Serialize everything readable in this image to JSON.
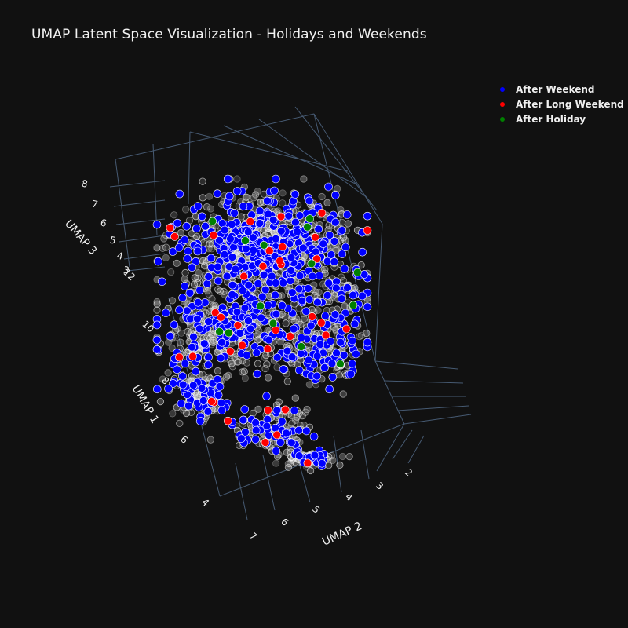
{
  "chart_data": {
    "type": "scatter",
    "title": "UMAP Latent Space Visualization - Holidays and Weekends",
    "axes": {
      "x": {
        "label": "UMAP 1",
        "ticks": [
          "4",
          "6",
          "8",
          "10",
          "12"
        ]
      },
      "y": {
        "label": "UMAP 2",
        "ticks": [
          "2",
          "3",
          "4",
          "5",
          "6",
          "7"
        ]
      },
      "z": {
        "label": "UMAP 3",
        "ticks": [
          "3",
          "4",
          "5",
          "6",
          "7",
          "8"
        ]
      }
    },
    "background_series": {
      "name": "",
      "color": "#cccccc"
    },
    "series": [
      {
        "name": "After Weekend",
        "color": "#0000ff"
      },
      {
        "name": "After Long Weekend",
        "color": "#ff0000"
      },
      {
        "name": "After Holiday",
        "color": "#008000"
      }
    ],
    "legend_position": "top-right",
    "grid": true
  },
  "colors": {
    "background": "#111111",
    "grid": "#506784",
    "marker_outline": "#ffffff"
  }
}
